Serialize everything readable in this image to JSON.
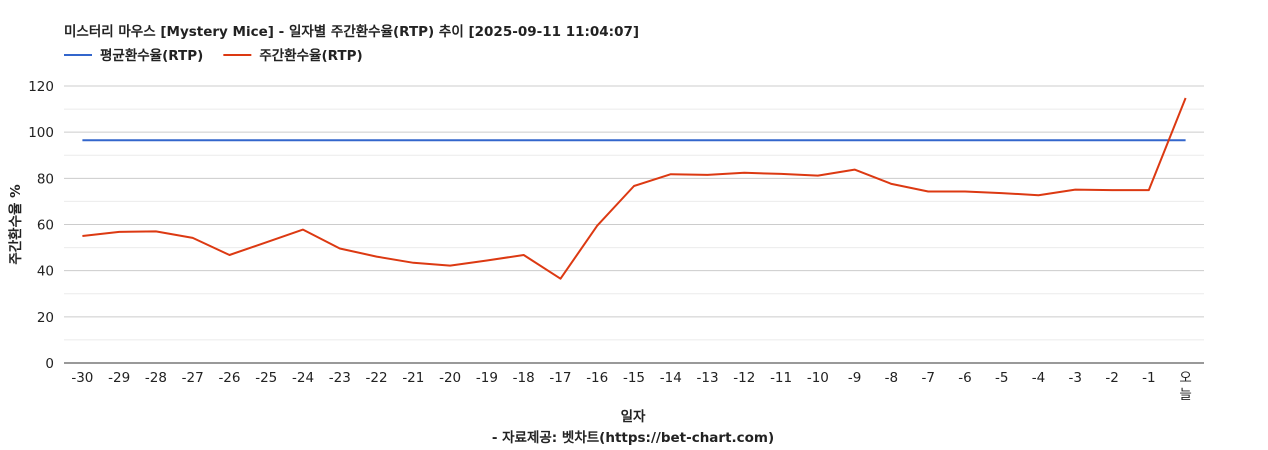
{
  "chart_data": {
    "type": "line",
    "title": "미스터리 마우스 [Mystery Mice] - 일자별 주간환수율(RTP) 추이 [2025-09-11 11:04:07]",
    "xlabel": "일자",
    "ylabel": "주간환수율 %",
    "ylim": [
      0,
      120
    ],
    "yticks": [
      0,
      20,
      40,
      60,
      80,
      100,
      120
    ],
    "grid": true,
    "legend_position": "top-left",
    "categories": [
      "-30",
      "-29",
      "-28",
      "-27",
      "-26",
      "-25",
      "-24",
      "-23",
      "-22",
      "-21",
      "-20",
      "-19",
      "-18",
      "-17",
      "-16",
      "-15",
      "-14",
      "-13",
      "-12",
      "-11",
      "-10",
      "-9",
      "-8",
      "-7",
      "-6",
      "-5",
      "-4",
      "-3",
      "-2",
      "-1",
      "오늘"
    ],
    "series": [
      {
        "name": "평균환수율(RTP)",
        "color": "#3366cc",
        "values": [
          96.5,
          96.5,
          96.5,
          96.5,
          96.5,
          96.5,
          96.5,
          96.5,
          96.5,
          96.5,
          96.5,
          96.5,
          96.5,
          96.5,
          96.5,
          96.5,
          96.5,
          96.5,
          96.5,
          96.5,
          96.5,
          96.5,
          96.5,
          96.5,
          96.5,
          96.5,
          96.5,
          96.5,
          96.5,
          96.5,
          96.5
        ]
      },
      {
        "name": "주간환수율(RTP)",
        "color": "#dc3912",
        "values": [
          55,
          56.8,
          57,
          54.2,
          46.8,
          52.3,
          57.8,
          49.6,
          46.1,
          43.4,
          42.2,
          44.4,
          46.8,
          36.5,
          59.5,
          76.7,
          81.8,
          81.5,
          82.4,
          81.9,
          81.2,
          83.8,
          77.6,
          74.3,
          74.3,
          73.6,
          72.7,
          75.1,
          74.9,
          74.9,
          114.8
        ]
      }
    ]
  },
  "footer": {
    "credit": "- 자료제공: 벳차트(https://bet-chart.com)"
  }
}
